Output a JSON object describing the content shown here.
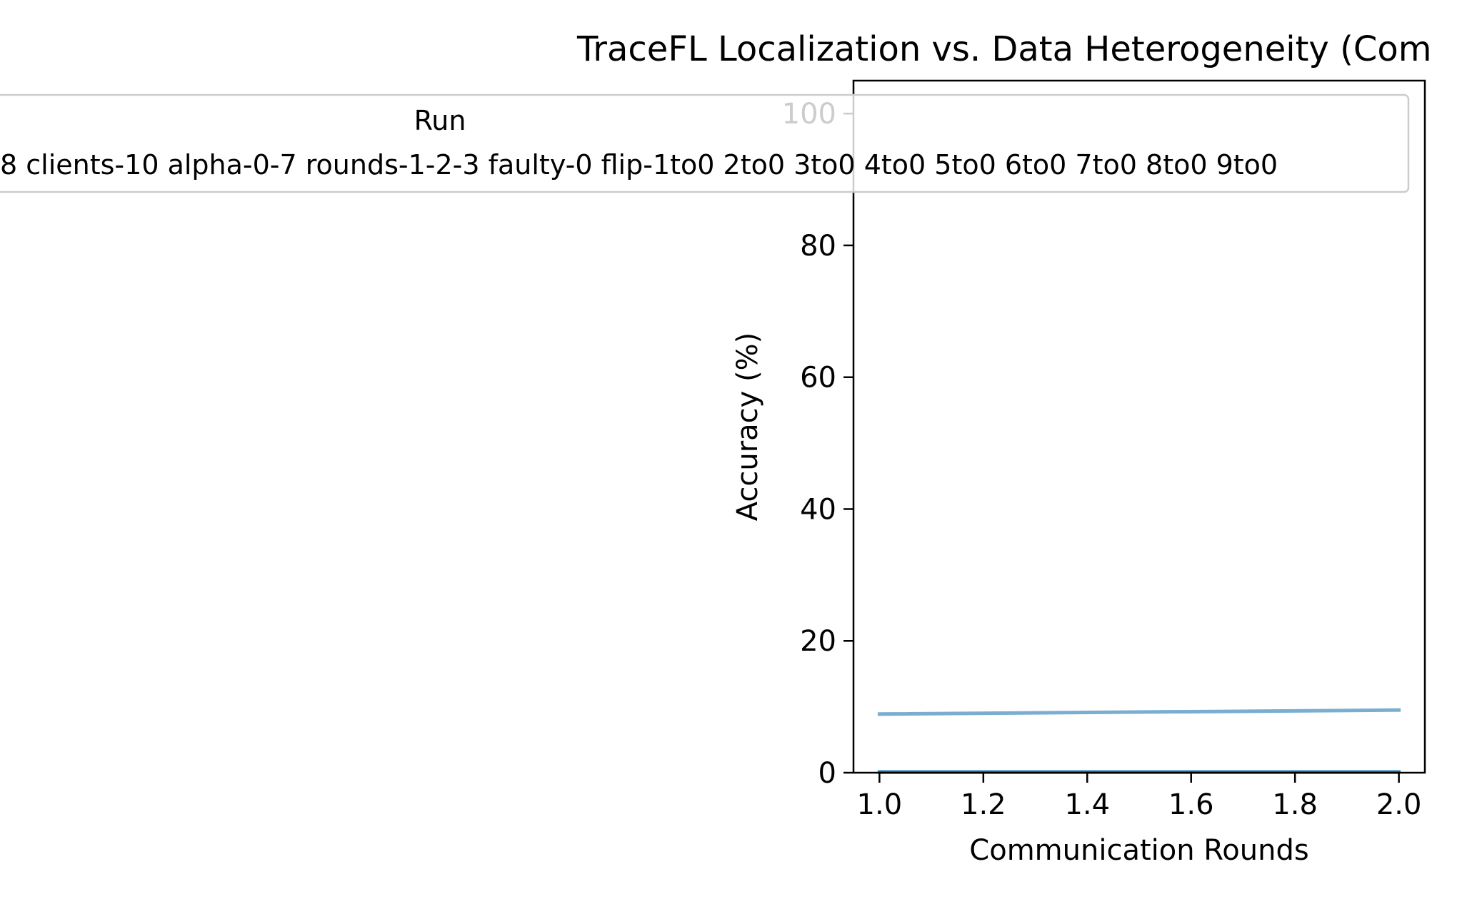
{
  "chart_data": {
    "type": "line",
    "title": "TraceFL Localization vs. Data Heterogeneity (Com",
    "xlabel": "Communication Rounds",
    "ylabel": "Accuracy (%)",
    "xlim": [
      0.95,
      2.05
    ],
    "ylim": [
      0,
      105
    ],
    "xticks": [
      "1.0",
      "1.2",
      "1.4",
      "1.6",
      "1.8",
      "2.0"
    ],
    "yticks": [
      "0",
      "20",
      "40",
      "60",
      "80",
      "100"
    ],
    "grid": false,
    "legend": {
      "title": "Run",
      "placement": "top",
      "entries": [
        "8 clients-10 alpha-0-7 rounds-1-2-3 faulty-0 flip-1to0 2to0 3to0 4to0 5to0 6to0 7to0 8to0 9to0"
      ]
    },
    "series": [
      {
        "x": [
          1.0,
          2.0
        ],
        "y": [
          8.9,
          9.5
        ],
        "color": "#7aaed0"
      },
      {
        "x": [
          1.0,
          2.0
        ],
        "y": [
          0.1,
          0.1
        ],
        "color": "#1f77b4"
      }
    ]
  }
}
